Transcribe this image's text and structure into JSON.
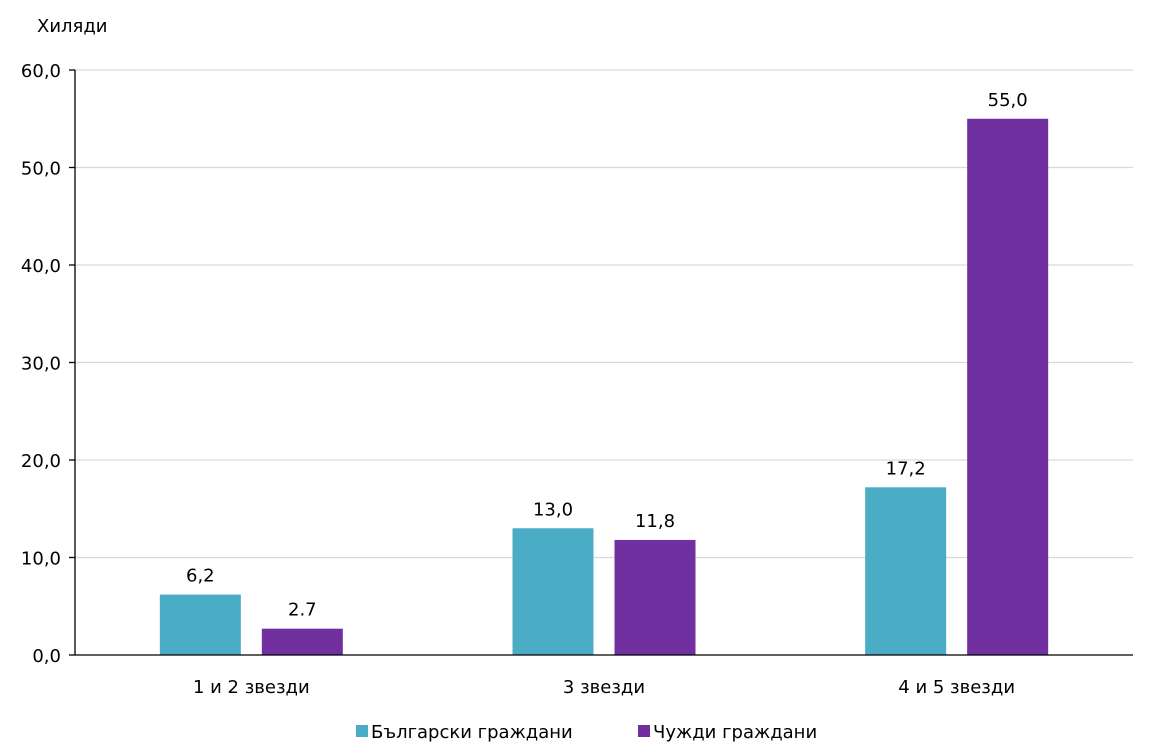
{
  "chart_data": {
    "type": "bar",
    "unit_label": "Хиляди",
    "categories": [
      "1 и 2 звезди",
      "3 звезди",
      "4 и 5 звезди"
    ],
    "series": [
      {
        "name": "Български граждани",
        "color": "#4bacc6",
        "values": [
          6.2,
          13.0,
          17.2
        ],
        "labels": [
          "6,2",
          "13,0",
          "17,2"
        ]
      },
      {
        "name": "Чужди граждани",
        "color": "#7030a0",
        "values": [
          2.7,
          11.8,
          55.0
        ],
        "labels": [
          "2.7",
          "11,8",
          "55,0"
        ]
      }
    ],
    "ylim": [
      0,
      60
    ],
    "yticks": [
      0,
      10,
      20,
      30,
      40,
      50,
      60
    ],
    "ytick_labels": [
      "0,0",
      "10,0",
      "20,0",
      "30,0",
      "40,0",
      "50,0",
      "60,0"
    ],
    "grid": true,
    "legend_position": "bottom"
  }
}
